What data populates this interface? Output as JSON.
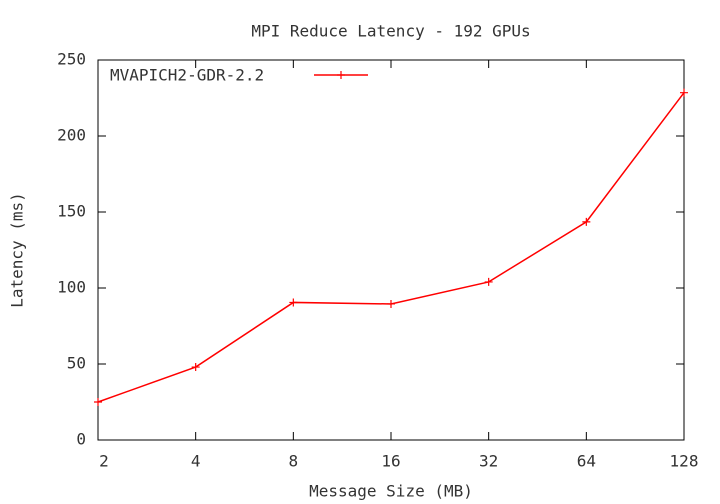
{
  "chart_data": {
    "type": "line",
    "title": "MPI Reduce Latency - 192 GPUs",
    "x_label": "Message Size (MB)",
    "y_label": "Latency (ms)",
    "x": [
      2,
      4,
      8,
      16,
      32,
      64,
      128
    ],
    "xlim": [
      2,
      128
    ],
    "xticks": [
      2,
      4,
      8,
      16,
      32,
      64,
      128
    ],
    "xlog": 2,
    "ylim": [
      0,
      250
    ],
    "yticks": [
      0,
      50,
      100,
      150,
      200,
      250
    ],
    "legend": "top-left",
    "series": [
      {
        "name": "MVAPICH2-GDR-2.2",
        "color": "#ff0000",
        "values": [
          25,
          48,
          90.5,
          89.5,
          104,
          143.5,
          228.5
        ]
      }
    ]
  }
}
